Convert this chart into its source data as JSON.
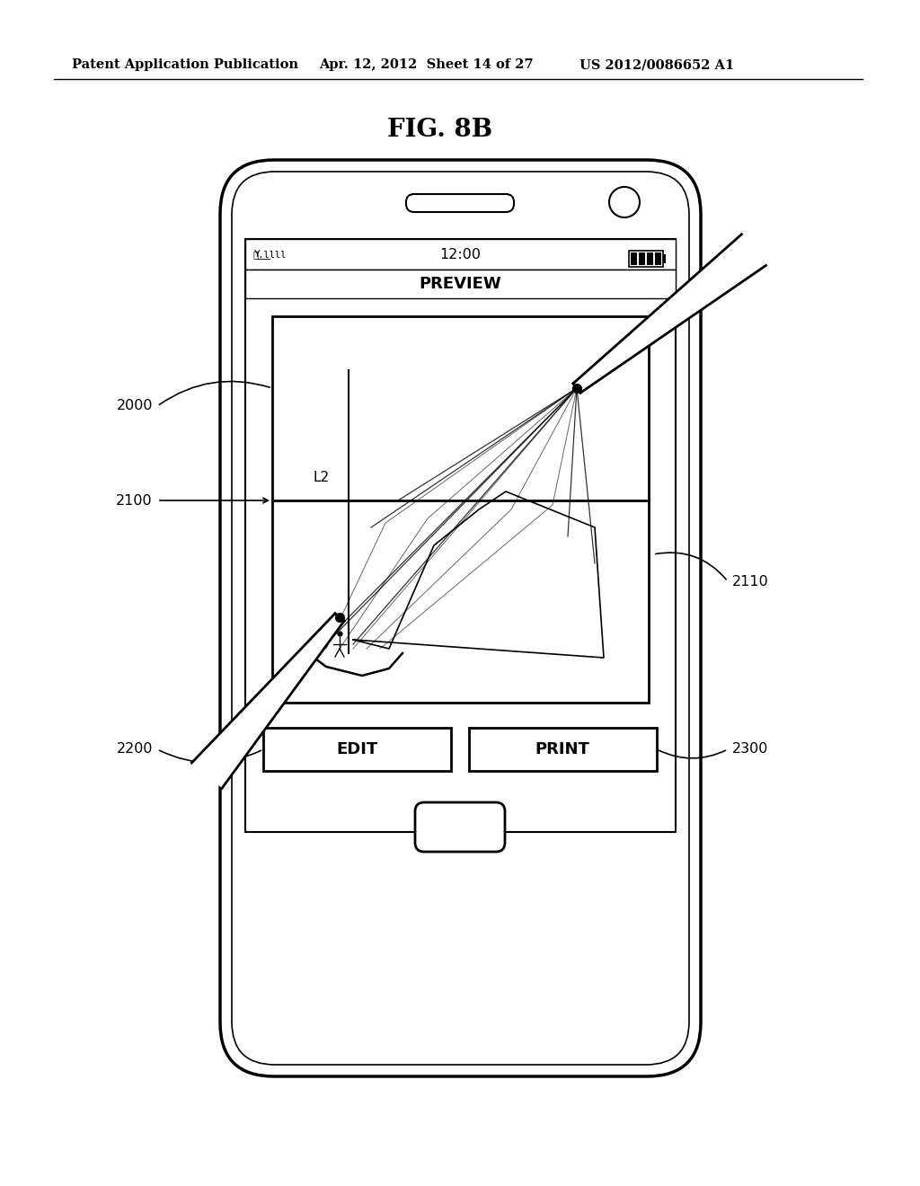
{
  "bg_color": "#ffffff",
  "header_left": "Patent Application Publication",
  "header_mid": "Apr. 12, 2012  Sheet 14 of 27",
  "header_right": "US 2012/0086652 A1",
  "figure_title": "FIG. 8B",
  "label_2000": "2000",
  "label_2100": "2100",
  "label_2110": "2110",
  "label_2200": "2200",
  "label_2300": "2300",
  "label_L2": "L2",
  "status_time": "12:00",
  "preview_text": "PREVIEW",
  "edit_text": "EDIT",
  "print_text": "PRINT"
}
